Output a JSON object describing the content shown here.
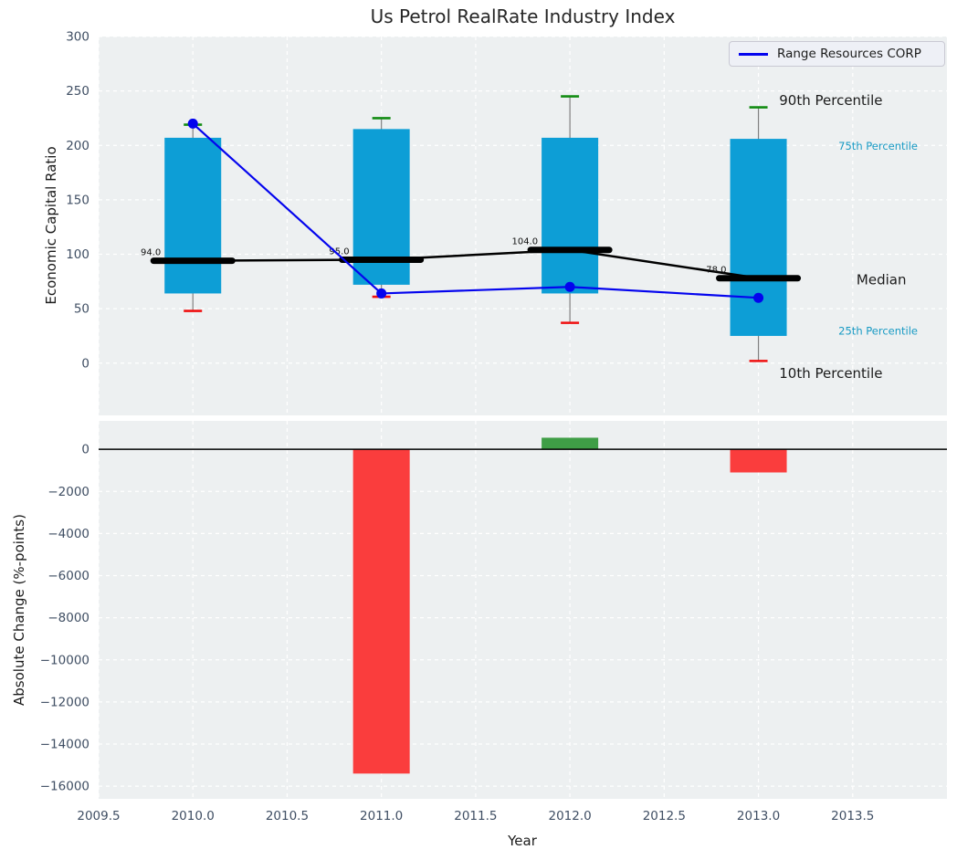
{
  "header": {
    "title": "Us Petrol RealRate Industry Index"
  },
  "legend": {
    "label": "Range Resources CORP"
  },
  "colors": {
    "axes_background": "#edf0f1",
    "gridline": "#ffffff",
    "tick_label": "#3f4e63",
    "text": "#1b1b1b",
    "box_fill": "#0d9ed6",
    "whisker_line": "#808080",
    "cap_90th": "#128c12",
    "cap_10th": "#ef1010",
    "median_line": "#000000",
    "company_line": "#0404ee",
    "bar_negative": "#fa3d3d",
    "bar_positive": "#3f9e46",
    "percentile_label_cyan": "#189ac4"
  },
  "chart_data": [
    {
      "type": "line",
      "title": "Us Petrol RealRate Industry Index",
      "ylabel": "Economic Capital Ratio",
      "x": [
        2010,
        2011,
        2012,
        2013
      ],
      "series": [
        {
          "name": "Range Resources CORP",
          "values": [
            220,
            64,
            70,
            60
          ]
        }
      ],
      "box": {
        "p10": [
          48,
          61,
          37,
          2
        ],
        "p25": [
          64,
          72,
          64,
          25
        ],
        "median": [
          94,
          95,
          104,
          78
        ],
        "p75": [
          207,
          215,
          207,
          206
        ],
        "p90": [
          219,
          225,
          245,
          235
        ]
      },
      "median_labels": [
        "94.0",
        "95.0",
        "104.0",
        "78.0"
      ],
      "ylim": [
        -48,
        300
      ],
      "xlim": [
        2009.5,
        2014.0
      ],
      "yticks": [
        300,
        250,
        200,
        150,
        100,
        50,
        0
      ],
      "grid": true,
      "legend_position": "upper right",
      "annotations": [
        {
          "text": "90th Percentile",
          "x": 2013.11,
          "y": 241,
          "color": "#1b1b1b",
          "size": 15,
          "anchor": "start"
        },
        {
          "text": "75th Percentile",
          "x": 2013.845,
          "y": 199,
          "color": "#189ac4",
          "size": 11.5,
          "anchor": "end"
        },
        {
          "text": "Median",
          "x": 2013.52,
          "y": 76,
          "color": "#1b1b1b",
          "size": 15,
          "anchor": "start"
        },
        {
          "text": "25th Percentile",
          "x": 2013.845,
          "y": 29,
          "color": "#189ac4",
          "size": 11.5,
          "anchor": "end"
        },
        {
          "text": "10th Percentile",
          "x": 2013.11,
          "y": -10,
          "color": "#1b1b1b",
          "size": 15,
          "anchor": "start"
        }
      ]
    },
    {
      "type": "bar",
      "ylabel": "Absolute Change (%-points)",
      "xlabel": "Year",
      "x": [
        2011,
        2012,
        2013
      ],
      "values": [
        -15400,
        550,
        -1100
      ],
      "bar_colors": [
        "#fa3d3d",
        "#3f9e46",
        "#fa3d3d"
      ],
      "ylim": [
        -16600,
        1350
      ],
      "xlim": [
        2009.5,
        2014.0
      ],
      "yticks": [
        0,
        -2000,
        -4000,
        -6000,
        -8000,
        -10000,
        -12000,
        -14000,
        -16000
      ],
      "xticks": [
        2009.5,
        2010.0,
        2010.5,
        2011.0,
        2011.5,
        2012.0,
        2012.5,
        2013.0,
        2013.5
      ],
      "grid": true,
      "zero_line": true
    }
  ]
}
